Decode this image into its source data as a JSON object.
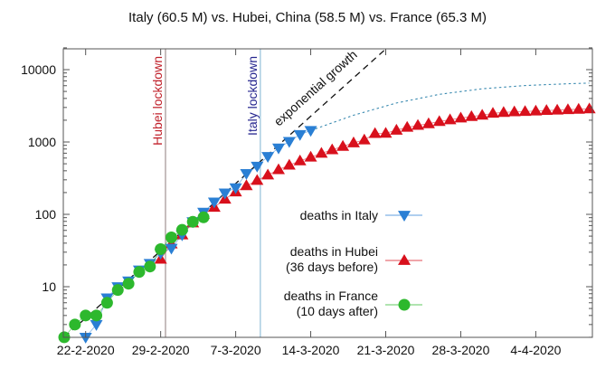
{
  "chart_data": {
    "type": "scatter",
    "title": "Italy (60.5 M) vs. Hubei, China (58.5 M) vs. France (65.3 M)",
    "xlabel": "",
    "ylabel": "",
    "y_scale": "log",
    "ylim": [
      2,
      20000
    ],
    "xlim": [
      "2020-02-20",
      "2020-04-09"
    ],
    "grid": false,
    "legend_placement": "center-right",
    "x_ticks": [
      {
        "date": "2020-02-22",
        "label": "22-2-2020"
      },
      {
        "date": "2020-02-29",
        "label": "29-2-2020"
      },
      {
        "date": "2020-03-07",
        "label": "7-3-2020"
      },
      {
        "date": "2020-03-14",
        "label": "14-3-2020"
      },
      {
        "date": "2020-03-21",
        "label": "21-3-2020"
      },
      {
        "date": "2020-03-28",
        "label": "28-3-2020"
      },
      {
        "date": "2020-04-04",
        "label": "4-4-2020"
      }
    ],
    "y_ticks": [
      {
        "value": 10,
        "label": "10"
      },
      {
        "value": 100,
        "label": "100"
      },
      {
        "value": 1000,
        "label": "1000"
      },
      {
        "value": 10000,
        "label": "10000"
      }
    ],
    "series": [
      {
        "name": "deaths in Italy",
        "legend": [
          "deaths in Italy"
        ],
        "marker": "triangle-down",
        "color": "#2a7fd4",
        "start": "2020-02-22",
        "values": [
          2,
          3,
          7,
          10,
          12,
          17,
          21,
          29,
          34,
          52,
          79,
          107,
          148,
          197,
          233,
          366,
          463,
          631,
          827,
          1016,
          1266,
          1441
        ]
      },
      {
        "name": "deaths in Hubei (36 days before)",
        "legend": [
          "deaths in Hubei",
          "(36 days before)"
        ],
        "marker": "triangle-up",
        "color": "#d8101c",
        "start": "2020-02-29",
        "values": [
          24,
          39,
          52,
          76,
          100,
          125,
          162,
          204,
          249,
          294,
          350,
          414,
          479,
          549,
          618,
          699,
          780,
          871,
          974,
          1068,
          1310,
          1318,
          1457,
          1596,
          1696,
          1789,
          1921,
          2029,
          2144,
          2250,
          2346,
          2495,
          2563,
          2615,
          2641,
          2682,
          2727,
          2761,
          2803,
          2835,
          2871
        ]
      },
      {
        "name": "deaths in France (10 days after)",
        "legend": [
          "deaths in France",
          "(10 days after)"
        ],
        "marker": "circle",
        "color": "#2db82d",
        "start": "2020-02-20",
        "values": [
          2,
          3,
          4,
          4,
          6,
          9,
          11,
          16,
          19,
          33,
          48,
          61,
          79,
          91
        ]
      }
    ],
    "lines": [
      {
        "label": "exponential growth",
        "style": "dashed",
        "color": "#111111",
        "points": [
          {
            "x": "2020-02-20",
            "y": 2
          },
          {
            "x": "2020-03-21",
            "y": 19300
          }
        ]
      },
      {
        "label": "",
        "style": "dotted",
        "color": "#3a8ab0",
        "points": [
          {
            "x": "2020-03-14",
            "y": 1441
          },
          {
            "x": "2020-03-18",
            "y": 2345
          },
          {
            "x": "2020-03-22",
            "y": 3460
          },
          {
            "x": "2020-03-26",
            "y": 4555
          },
          {
            "x": "2020-03-30",
            "y": 5440
          },
          {
            "x": "2020-04-03",
            "y": 6030
          },
          {
            "x": "2020-04-07",
            "y": 6385
          },
          {
            "x": "2020-04-09",
            "y": 6515
          }
        ]
      }
    ],
    "annotations": [
      {
        "label": "Hubei lockdown",
        "date": "2020-02-29",
        "line_color": "#a89a9a",
        "text_color": "#c0202a"
      },
      {
        "label": "Italy lockdown",
        "date": "2020-03-09",
        "line_color": "#9cc4dc",
        "text_color": "#26268f"
      }
    ]
  }
}
